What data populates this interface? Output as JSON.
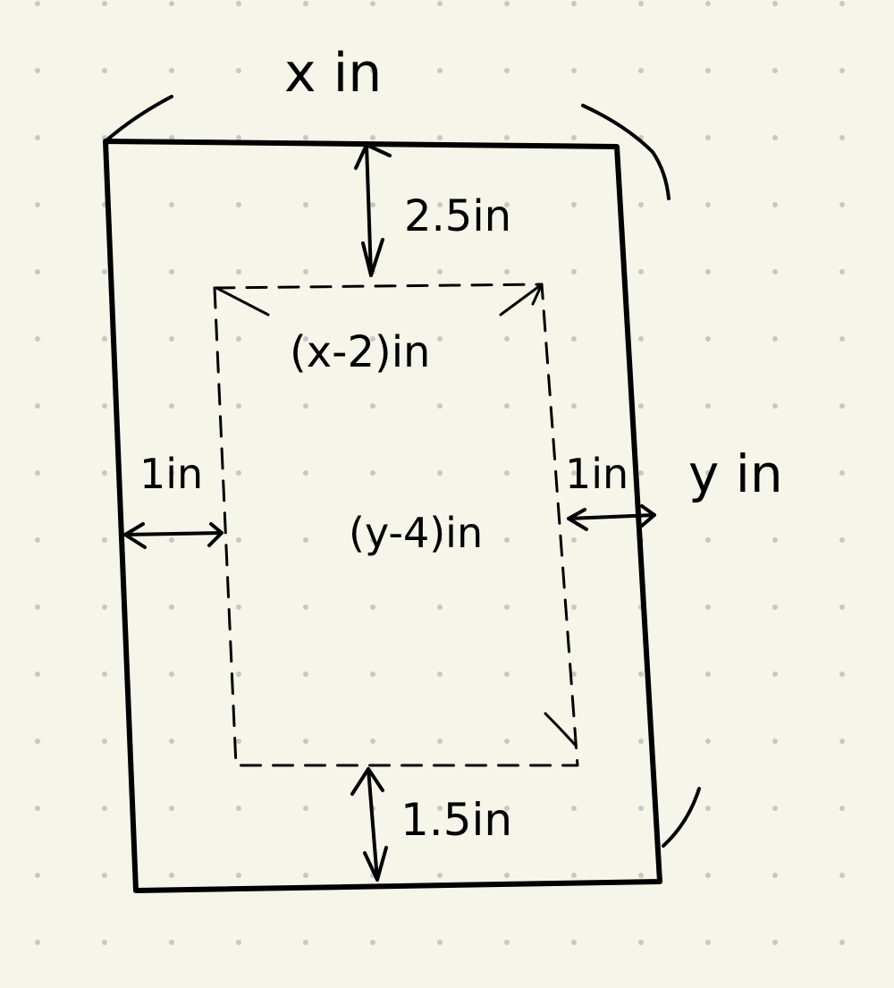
{
  "diagram": {
    "labels": {
      "outer_width": "x in",
      "outer_height": "y in",
      "top_margin": "2.5in",
      "bottom_margin": "1.5in",
      "left_margin": "1in",
      "right_margin": "1in",
      "inner_width": "(x-2)in",
      "inner_height": "(y-4)in"
    },
    "colors": {
      "background": "#f6f5ea",
      "dots": "#c9c8c0",
      "ink": "#000000"
    }
  }
}
